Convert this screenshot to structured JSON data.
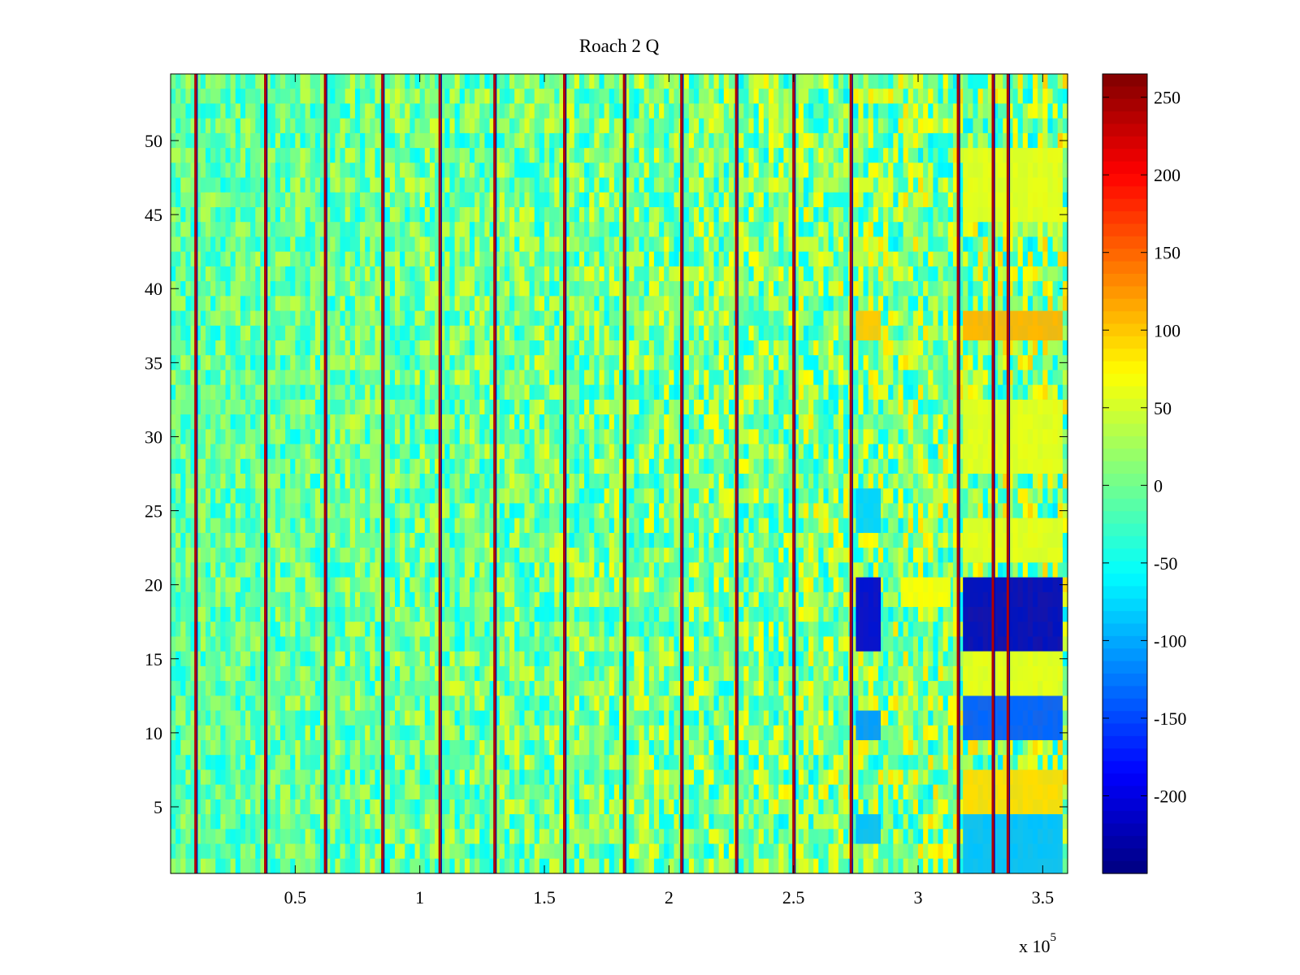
{
  "chart_data": {
    "type": "heatmap",
    "title": "Roach 2 Q",
    "xlabel": "",
    "ylabel": "",
    "x_range": [
      0,
      360000
    ],
    "y_range": [
      0.5,
      54.5
    ],
    "x_ticks": [
      50000,
      100000,
      150000,
      200000,
      250000,
      300000,
      350000
    ],
    "x_tick_labels": [
      "0.5",
      "1",
      "1.5",
      "2",
      "2.5",
      "3",
      "3.5"
    ],
    "x_exponent_label": "x 10",
    "x_exponent_sup": "5",
    "y_ticks": [
      5,
      10,
      15,
      20,
      25,
      30,
      35,
      40,
      45,
      50
    ],
    "y_tick_labels": [
      "5",
      "10",
      "15",
      "20",
      "25",
      "30",
      "35",
      "40",
      "45",
      "50"
    ],
    "rows": 54,
    "colormap": "jet",
    "color_range": [
      -250,
      265
    ],
    "colorbar_ticks": [
      250,
      200,
      150,
      100,
      50,
      0,
      -50,
      -100,
      -150,
      -200
    ],
    "colorbar_tick_labels": [
      "250",
      "200",
      "150",
      "100",
      "50",
      "0",
      "-50",
      "-100",
      "-150",
      "-200"
    ],
    "background_value": -10,
    "vertical_stripes_x": [
      10000,
      38000,
      62000,
      85000,
      108000,
      130000,
      158000,
      182000,
      205000,
      227000,
      250000,
      273000,
      316000,
      330000,
      336000
    ],
    "blocks": [
      {
        "x": [
          275000,
          285000
        ],
        "y": [
          16,
          20
        ],
        "value": -210
      },
      {
        "x": [
          318000,
          358000
        ],
        "y": [
          16,
          20
        ],
        "value": -220
      },
      {
        "x": [
          318000,
          358000
        ],
        "y": [
          10,
          12
        ],
        "value": -140
      },
      {
        "x": [
          275000,
          285000
        ],
        "y": [
          10,
          11
        ],
        "value": -110
      },
      {
        "x": [
          318000,
          358000
        ],
        "y": [
          37,
          38
        ],
        "value": 110
      },
      {
        "x": [
          275000,
          285000
        ],
        "y": [
          37,
          38
        ],
        "value": 100
      },
      {
        "x": [
          318000,
          358000
        ],
        "y": [
          5,
          7
        ],
        "value": 90
      },
      {
        "x": [
          318000,
          358000
        ],
        "y": [
          28,
          32
        ],
        "value": 60
      },
      {
        "x": [
          318000,
          358000
        ],
        "y": [
          45,
          49
        ],
        "value": 60
      },
      {
        "x": [
          293000,
          313000
        ],
        "y": [
          19,
          20
        ],
        "value": 70
      },
      {
        "x": [
          318000,
          358000
        ],
        "y": [
          1,
          4
        ],
        "value": -90
      },
      {
        "x": [
          275000,
          285000
        ],
        "y": [
          3,
          4
        ],
        "value": -90
      },
      {
        "x": [
          318000,
          358000
        ],
        "y": [
          13,
          15
        ],
        "value": 60
      },
      {
        "x": [
          318000,
          358000
        ],
        "y": [
          22,
          24
        ],
        "value": 60
      },
      {
        "x": [
          275000,
          285000
        ],
        "y": [
          24,
          26
        ],
        "value": -80
      }
    ]
  }
}
